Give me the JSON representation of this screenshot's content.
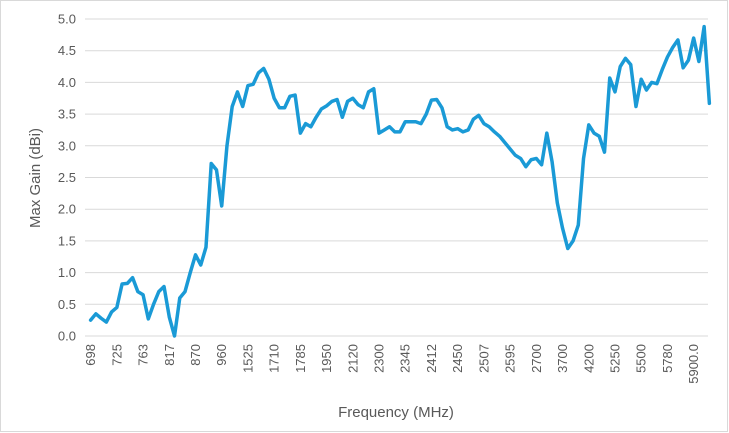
{
  "chart_data": {
    "type": "line",
    "x_label": "Frequency (MHz)",
    "y_label": "Max Gain (dBi)",
    "categories": [
      "698",
      null,
      null,
      null,
      null,
      "725",
      null,
      null,
      null,
      null,
      "763",
      null,
      null,
      null,
      null,
      "817",
      null,
      null,
      null,
      null,
      "870",
      null,
      null,
      null,
      null,
      "960",
      null,
      null,
      null,
      null,
      "1525",
      null,
      null,
      null,
      null,
      "1710",
      null,
      null,
      null,
      null,
      "1785",
      null,
      null,
      null,
      null,
      "1950",
      null,
      null,
      null,
      null,
      "2120",
      null,
      null,
      null,
      null,
      "2300",
      null,
      null,
      null,
      null,
      "2345",
      null,
      null,
      null,
      null,
      "2412",
      null,
      null,
      null,
      null,
      "2450",
      null,
      null,
      null,
      null,
      "2507",
      null,
      null,
      null,
      null,
      "2595",
      null,
      null,
      null,
      null,
      "2700",
      null,
      null,
      null,
      null,
      "3700",
      null,
      null,
      null,
      null,
      "4200",
      null,
      null,
      null,
      null,
      "5250",
      null,
      null,
      null,
      null,
      "5500",
      null,
      null,
      null,
      null,
      "5780",
      null,
      null,
      null,
      null,
      "5900.0",
      null,
      null,
      null
    ],
    "series": [
      {
        "name": "Max Gain",
        "color": "#1a9ad6",
        "values": [
          0.25,
          0.35,
          0.28,
          0.22,
          0.38,
          0.45,
          0.82,
          0.83,
          0.92,
          0.7,
          0.65,
          0.27,
          0.5,
          0.7,
          0.78,
          0.3,
          0.0,
          0.6,
          0.7,
          1.0,
          1.28,
          1.12,
          1.4,
          2.72,
          2.62,
          2.05,
          3.0,
          3.62,
          3.85,
          3.62,
          3.95,
          3.97,
          4.15,
          4.22,
          4.05,
          3.75,
          3.6,
          3.6,
          3.78,
          3.8,
          3.2,
          3.35,
          3.3,
          3.45,
          3.58,
          3.63,
          3.7,
          3.73,
          3.45,
          3.7,
          3.75,
          3.65,
          3.6,
          3.85,
          3.9,
          3.2,
          3.25,
          3.3,
          3.22,
          3.22,
          3.38,
          3.38,
          3.38,
          3.35,
          3.5,
          3.72,
          3.73,
          3.6,
          3.3,
          3.25,
          3.27,
          3.22,
          3.25,
          3.42,
          3.48,
          3.35,
          3.3,
          3.22,
          3.15,
          3.05,
          2.95,
          2.85,
          2.8,
          2.67,
          2.78,
          2.8,
          2.7,
          3.2,
          2.75,
          2.1,
          1.7,
          1.38,
          1.5,
          1.75,
          2.8,
          3.33,
          3.2,
          3.15,
          2.9,
          4.07,
          3.85,
          4.25,
          4.38,
          4.28,
          3.62,
          4.05,
          3.88,
          4.0,
          3.98,
          4.2,
          4.4,
          4.55,
          4.67,
          4.23,
          4.35,
          4.7,
          4.33,
          4.88,
          3.67
        ]
      }
    ],
    "ylim": [
      0,
      5
    ],
    "yticks": [
      {
        "value": 0,
        "label": "0.0"
      },
      {
        "value": 0.5,
        "label": "0.5"
      },
      {
        "value": 1,
        "label": "1.0"
      },
      {
        "value": 1.5,
        "label": "1.5"
      },
      {
        "value": 2,
        "label": "2.0"
      },
      {
        "value": 2.5,
        "label": "2.5"
      },
      {
        "value": 3,
        "label": "3.0"
      },
      {
        "value": 3.5,
        "label": "3.5"
      },
      {
        "value": 4,
        "label": "4.0"
      },
      {
        "value": 4.5,
        "label": "4.5"
      },
      {
        "value": 5,
        "label": "5.0"
      }
    ],
    "grid": true
  }
}
